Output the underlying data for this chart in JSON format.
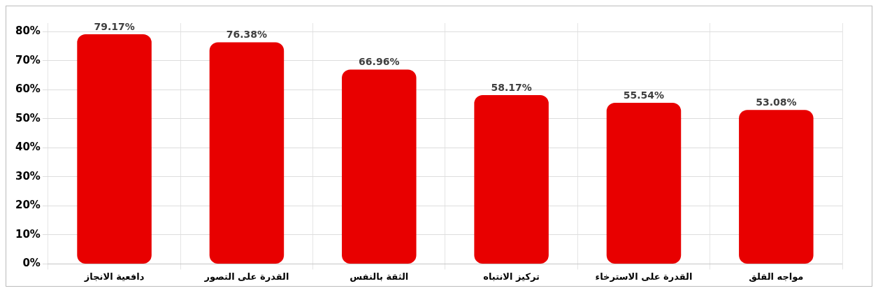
{
  "chart_data": {
    "type": "bar",
    "categories": [
      "دافعية الانجاز",
      "القدرة على التصور",
      "الثقة بالنفس",
      "تركيز الانتباه",
      "القدرة على الاسترخاء",
      "مواجه القلق"
    ],
    "values": [
      79.17,
      76.38,
      66.96,
      58.17,
      55.54,
      53.08
    ],
    "value_labels": [
      "79.17%",
      "76.38%",
      "66.96%",
      "58.17%",
      "55.54%",
      "53.08%"
    ],
    "color": "#e80000",
    "ylim": [
      0,
      83
    ],
    "yticks": [
      {
        "value": 0,
        "label": "0%"
      },
      {
        "value": 10,
        "label": "10%"
      },
      {
        "value": 20,
        "label": "20%"
      },
      {
        "value": 30,
        "label": "30%"
      },
      {
        "value": 40,
        "label": "40%"
      },
      {
        "value": 50,
        "label": "50%"
      },
      {
        "value": 60,
        "label": "60%"
      },
      {
        "value": 70,
        "label": "70%"
      },
      {
        "value": 80,
        "label": "80%"
      }
    ],
    "grid": true,
    "legend": false
  }
}
